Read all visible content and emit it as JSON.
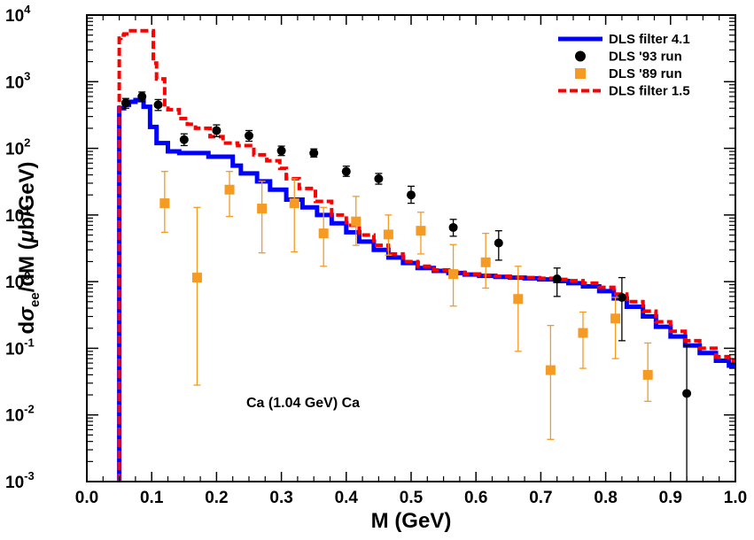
{
  "chart_data": {
    "type": "line",
    "xlabel": "M (GeV)",
    "ylabel_parts": [
      "d",
      "σ",
      "ee",
      "/dM (",
      "μ",
      "b/GeV)"
    ],
    "xlim": [
      0.0,
      1.0
    ],
    "ylim": [
      0.001,
      10000
    ],
    "yscale": "log",
    "x_ticks": [
      {
        "value": 0.0,
        "label": "0.0"
      },
      {
        "value": 0.1,
        "label": "0.1"
      },
      {
        "value": 0.2,
        "label": "0.2"
      },
      {
        "value": 0.3,
        "label": "0.3"
      },
      {
        "value": 0.4,
        "label": "0.4"
      },
      {
        "value": 0.5,
        "label": "0.5"
      },
      {
        "value": 0.6,
        "label": "0.6"
      },
      {
        "value": 0.7,
        "label": "0.7"
      },
      {
        "value": 0.8,
        "label": "0.8"
      },
      {
        "value": 0.9,
        "label": "0.9"
      },
      {
        "value": 1.0,
        "label": "1.0"
      }
    ],
    "y_ticks": [
      {
        "value": 0.001,
        "base": "10",
        "exp": "-3"
      },
      {
        "value": 0.01,
        "base": "10",
        "exp": "-2"
      },
      {
        "value": 0.1,
        "base": "10",
        "exp": "-1"
      },
      {
        "value": 1,
        "base": "10",
        "exp": "0"
      },
      {
        "value": 10,
        "base": "10",
        "exp": "1"
      },
      {
        "value": 100,
        "base": "10",
        "exp": "2"
      },
      {
        "value": 1000,
        "base": "10",
        "exp": "3"
      },
      {
        "value": 10000,
        "base": "10",
        "exp": "4"
      }
    ],
    "annotation": "Ca (1.04 GeV) Ca",
    "legend_position": "top-right",
    "series": [
      {
        "name": "DLS filter 4.1",
        "kind": "step",
        "color": "#0000ff",
        "dash": false,
        "x0": 0.05,
        "y0": 0.001,
        "steps": [
          [
            0.0575,
            400
          ],
          [
            0.065,
            450
          ],
          [
            0.075,
            500
          ],
          [
            0.0875,
            530
          ],
          [
            0.0975,
            420
          ],
          [
            0.1075,
            210
          ],
          [
            0.125,
            120
          ],
          [
            0.1425,
            90
          ],
          [
            0.1875,
            85
          ],
          [
            0.225,
            75
          ],
          [
            0.2375,
            55
          ],
          [
            0.2625,
            42
          ],
          [
            0.2825,
            32
          ],
          [
            0.3075,
            24
          ],
          [
            0.3325,
            17
          ],
          [
            0.355,
            13
          ],
          [
            0.3775,
            10
          ],
          [
            0.4,
            7.5
          ],
          [
            0.42,
            5.5
          ],
          [
            0.4425,
            4
          ],
          [
            0.465,
            3
          ],
          [
            0.4875,
            2.3
          ],
          [
            0.51,
            1.9
          ],
          [
            0.535,
            1.6
          ],
          [
            0.5575,
            1.45
          ],
          [
            0.5825,
            1.35
          ],
          [
            0.605,
            1.28
          ],
          [
            0.63,
            1.22
          ],
          [
            0.6525,
            1.18
          ],
          [
            0.675,
            1.15
          ],
          [
            0.6975,
            1.12
          ],
          [
            0.7225,
            1.08
          ],
          [
            0.7425,
            1.02
          ],
          [
            0.765,
            0.95
          ],
          [
            0.79,
            0.85
          ],
          [
            0.8125,
            0.72
          ],
          [
            0.8325,
            0.56
          ],
          [
            0.8575,
            0.42
          ],
          [
            0.8775,
            0.3
          ],
          [
            0.9,
            0.21
          ],
          [
            0.9225,
            0.15
          ],
          [
            0.945,
            0.11
          ],
          [
            0.97,
            0.085
          ],
          [
            0.99,
            0.065
          ],
          [
            0.99,
            0.055
          ]
        ]
      },
      {
        "name": "DLS filter 1.5",
        "kind": "step",
        "color": "#ff0000",
        "dash": true,
        "x0": 0.05,
        "y0": 0.001,
        "steps": [
          [
            0.0525,
            4500
          ],
          [
            0.0575,
            5000
          ],
          [
            0.0675,
            5200
          ],
          [
            0.0775,
            5800
          ],
          [
            0.1025,
            5800
          ],
          [
            0.1075,
            1900
          ],
          [
            0.12,
            1100
          ],
          [
            0.125,
            400
          ],
          [
            0.1425,
            380
          ],
          [
            0.155,
            280
          ],
          [
            0.1675,
            230
          ],
          [
            0.19,
            200
          ],
          [
            0.21,
            150
          ],
          [
            0.2325,
            120
          ],
          [
            0.2575,
            110
          ],
          [
            0.2775,
            80
          ],
          [
            0.2975,
            65
          ],
          [
            0.3075,
            50
          ],
          [
            0.3275,
            35
          ],
          [
            0.3525,
            25
          ],
          [
            0.3775,
            16
          ],
          [
            0.4,
            10
          ],
          [
            0.42,
            7
          ],
          [
            0.4425,
            5
          ],
          [
            0.465,
            3.5
          ],
          [
            0.4875,
            2.6
          ],
          [
            0.51,
            2
          ],
          [
            0.535,
            1.7
          ],
          [
            0.5575,
            1.5
          ],
          [
            0.5825,
            1.38
          ],
          [
            0.605,
            1.3
          ],
          [
            0.63,
            1.25
          ],
          [
            0.6525,
            1.2
          ],
          [
            0.675,
            1.17
          ],
          [
            0.6975,
            1.15
          ],
          [
            0.7225,
            1.12
          ],
          [
            0.7425,
            1.08
          ],
          [
            0.765,
            1.03
          ],
          [
            0.79,
            0.95
          ],
          [
            0.8125,
            0.82
          ],
          [
            0.8325,
            0.65
          ],
          [
            0.8575,
            0.5
          ],
          [
            0.8775,
            0.36
          ],
          [
            0.9,
            0.25
          ],
          [
            0.9225,
            0.18
          ],
          [
            0.945,
            0.13
          ],
          [
            0.97,
            0.1
          ],
          [
            0.99,
            0.075
          ],
          [
            0.99,
            0.065
          ]
        ]
      },
      {
        "name": "DLS '93 run",
        "kind": "scatter",
        "marker": "circle",
        "color": "#000000",
        "points": [
          {
            "x": 0.06,
            "y": 480,
            "lo": 400,
            "hi": 560
          },
          {
            "x": 0.085,
            "y": 600,
            "lo": 500,
            "hi": 700
          },
          {
            "x": 0.11,
            "y": 450,
            "lo": 370,
            "hi": 540
          },
          {
            "x": 0.15,
            "y": 135,
            "lo": 110,
            "hi": 165
          },
          {
            "x": 0.2,
            "y": 185,
            "lo": 150,
            "hi": 225
          },
          {
            "x": 0.25,
            "y": 155,
            "lo": 128,
            "hi": 185
          },
          {
            "x": 0.3,
            "y": 92,
            "lo": 78,
            "hi": 108
          },
          {
            "x": 0.35,
            "y": 85,
            "lo": 74,
            "hi": 98
          },
          {
            "x": 0.4,
            "y": 45,
            "lo": 38,
            "hi": 54
          },
          {
            "x": 0.45,
            "y": 35,
            "lo": 29,
            "hi": 42
          },
          {
            "x": 0.5,
            "y": 20,
            "lo": 15,
            "hi": 27
          },
          {
            "x": 0.565,
            "y": 6.5,
            "lo": 4.8,
            "hi": 8.6
          },
          {
            "x": 0.635,
            "y": 3.8,
            "lo": 2.1,
            "hi": 5.8
          },
          {
            "x": 0.725,
            "y": 1.1,
            "lo": 0.6,
            "hi": 1.6
          },
          {
            "x": 0.825,
            "y": 0.58,
            "lo": 0.13,
            "hi": 1.15
          },
          {
            "x": 0.925,
            "y": 0.021,
            "lo": 0.001,
            "hi": 0.11
          }
        ]
      },
      {
        "name": "DLS '89 run",
        "kind": "scatter",
        "marker": "square",
        "color": "#f59a22",
        "points": [
          {
            "x": 0.12,
            "y": 15,
            "lo": 5.5,
            "hi": 45
          },
          {
            "x": 0.17,
            "y": 1.15,
            "lo": 0.028,
            "hi": 13
          },
          {
            "x": 0.22,
            "y": 24,
            "lo": 9.5,
            "hi": 45
          },
          {
            "x": 0.27,
            "y": 12.5,
            "lo": 2.7,
            "hi": 32
          },
          {
            "x": 0.32,
            "y": 15,
            "lo": 2.8,
            "hi": 35
          },
          {
            "x": 0.365,
            "y": 5.3,
            "lo": 1.7,
            "hi": 13
          },
          {
            "x": 0.415,
            "y": 8,
            "lo": 3.5,
            "hi": 19
          },
          {
            "x": 0.465,
            "y": 5.1,
            "lo": 2.5,
            "hi": 10
          },
          {
            "x": 0.515,
            "y": 5.8,
            "lo": 2.6,
            "hi": 11
          },
          {
            "x": 0.565,
            "y": 1.3,
            "lo": 0.43,
            "hi": 3.6
          },
          {
            "x": 0.615,
            "y": 1.95,
            "lo": 0.8,
            "hi": 5.3
          },
          {
            "x": 0.665,
            "y": 0.55,
            "lo": 0.09,
            "hi": 1.7
          },
          {
            "x": 0.715,
            "y": 0.047,
            "lo": 0.0043,
            "hi": 0.22
          },
          {
            "x": 0.765,
            "y": 0.17,
            "lo": 0.05,
            "hi": 0.35
          },
          {
            "x": 0.815,
            "y": 0.28,
            "lo": 0.07,
            "hi": 0.58
          },
          {
            "x": 0.865,
            "y": 0.04,
            "lo": 0.016,
            "hi": 0.12
          }
        ]
      }
    ],
    "legend_order": [
      0,
      2,
      3,
      1
    ]
  }
}
